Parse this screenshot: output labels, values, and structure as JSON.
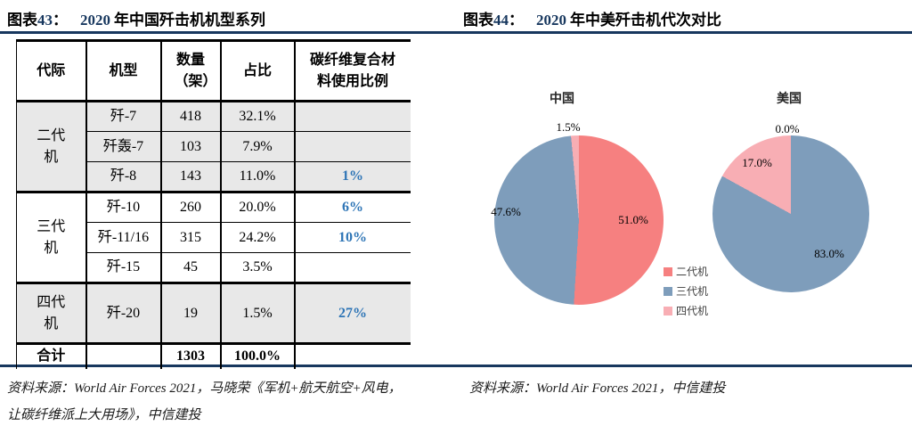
{
  "colors": {
    "accent_navy": "#17375E",
    "highlight_blue": "#2E75B6",
    "row_gray": "#E8E8E8",
    "pie_red": "#F68080",
    "pie_blue": "#7E9DBB",
    "pie_pink": "#F8AEB4"
  },
  "figures": {
    "left": {
      "fig_label": "图表",
      "fig_no": "43",
      "colon": "：",
      "title_year": "2020",
      "title_rest": "年中国歼击机机型系列",
      "source_line1": "资料来源：World Air Forces 2021，马晓荣《军机+航天航空+风电，",
      "source_line2": "让碳纤维派上大用场》，中信建投"
    },
    "right": {
      "fig_label": "图表",
      "fig_no": "44",
      "colon": "：",
      "title_year": "2020",
      "title_rest": "年中美歼击机代次对比",
      "source_line1": "资料来源：World Air Forces 2021，中信建投"
    }
  },
  "table": {
    "headers": [
      "代际",
      "机型",
      "数量（架）",
      "占比",
      "碳纤维复合材料使用比例"
    ],
    "groups": [
      {
        "generation": "二代机",
        "shaded": true,
        "rows": [
          {
            "model": "歼-7",
            "count": "418",
            "share": "32.1%",
            "carbon": ""
          },
          {
            "model": "歼轰-7",
            "count": "103",
            "share": "7.9%",
            "carbon": ""
          },
          {
            "model": "歼-8",
            "count": "143",
            "share": "11.0%",
            "carbon": "1%"
          }
        ]
      },
      {
        "generation": "三代机",
        "shaded": false,
        "rows": [
          {
            "model": "歼-10",
            "count": "260",
            "share": "20.0%",
            "carbon": "6%"
          },
          {
            "model": "歼-11/16",
            "count": "315",
            "share": "24.2%",
            "carbon": "10%"
          },
          {
            "model": "歼-15",
            "count": "45",
            "share": "3.5%",
            "carbon": ""
          }
        ]
      },
      {
        "generation": "四代机",
        "shaded": true,
        "rows": [
          {
            "model": "歼-20",
            "count": "19",
            "share": "1.5%",
            "carbon": "27%"
          }
        ]
      }
    ],
    "total_row": {
      "label": "合计",
      "model": "",
      "count": "1303",
      "share": "100.0%",
      "carbon": ""
    }
  },
  "chart_data": [
    {
      "type": "pie",
      "title": "中国",
      "labels": [
        "二代机",
        "三代机",
        "四代机"
      ],
      "values": [
        51.0,
        47.6,
        1.5
      ],
      "colors": [
        "#F68080",
        "#7E9DBB",
        "#F8AEB4"
      ],
      "data_labels": {
        "top": "1.5%",
        "left": "47.6%",
        "right": "51.0%"
      },
      "start_angle_deg": 0,
      "direction": "clockwise",
      "legend_position": "center-right-between-pies"
    },
    {
      "type": "pie",
      "title": "美国",
      "labels": [
        "二代机",
        "三代机",
        "四代机"
      ],
      "values": [
        0.0,
        83.0,
        17.0
      ],
      "colors": [
        "#F68080",
        "#7E9DBB",
        "#F8AEB4"
      ],
      "data_labels": {
        "top": "0.0%",
        "upper_left": "17.0%",
        "lower_right": "83.0%"
      },
      "start_angle_deg": 0,
      "direction": "clockwise",
      "legend_position": "center-right-between-pies"
    }
  ],
  "legend": {
    "items": [
      {
        "label": "二代机",
        "color": "#F68080"
      },
      {
        "label": "三代机",
        "color": "#7E9DBB"
      },
      {
        "label": "四代机",
        "color": "#F8AEB4"
      }
    ]
  }
}
